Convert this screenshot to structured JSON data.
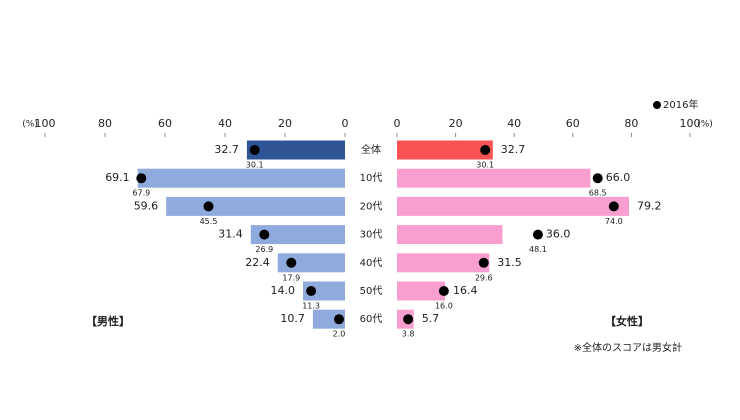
{
  "chart_data": {
    "type": "butterfly",
    "categories": [
      "全体",
      "10代",
      "20代",
      "30代",
      "40代",
      "50代",
      "60代"
    ],
    "series": [
      {
        "name": "【男性】",
        "color": "#8faadc",
        "highlight_color": "#2f5597",
        "values": [
          32.7,
          69.1,
          59.6,
          31.4,
          22.4,
          14.0,
          10.7
        ],
        "value_labels": [
          "32.7",
          "69.1",
          "59.6",
          "31.4",
          "22.4",
          "14.0",
          "10.7"
        ]
      },
      {
        "name": "【女性】",
        "color": "#f99fcf",
        "highlight_color": "#f85252",
        "values": [
          32.7,
          66.0,
          79.2,
          36.0,
          31.5,
          16.4,
          5.7
        ],
        "value_labels": [
          "32.7",
          "66.0",
          "79.2",
          "36.0",
          "31.5",
          "16.4",
          "5.7"
        ]
      }
    ],
    "markers": {
      "name": "2016年",
      "color": "#000000",
      "values": [
        [
          30.1,
          67.9,
          45.5,
          26.9,
          17.9,
          11.3,
          2.0
        ],
        [
          30.1,
          68.5,
          74.0,
          48.1,
          29.6,
          16.0,
          3.8
        ]
      ],
      "value_labels": [
        [
          "30.1",
          "67.9",
          "45.5",
          "26.9",
          "17.9",
          "11.3",
          "2.0"
        ],
        [
          "30.1",
          "68.5",
          "74.0",
          "48.1",
          "29.6",
          "16.0",
          "3.8"
        ]
      ]
    },
    "xlim": [
      0,
      100
    ],
    "xticks": [
      0,
      20,
      40,
      60,
      80,
      100
    ],
    "axis_unit": "(%)",
    "note": "※全体のスコアは男女計"
  }
}
